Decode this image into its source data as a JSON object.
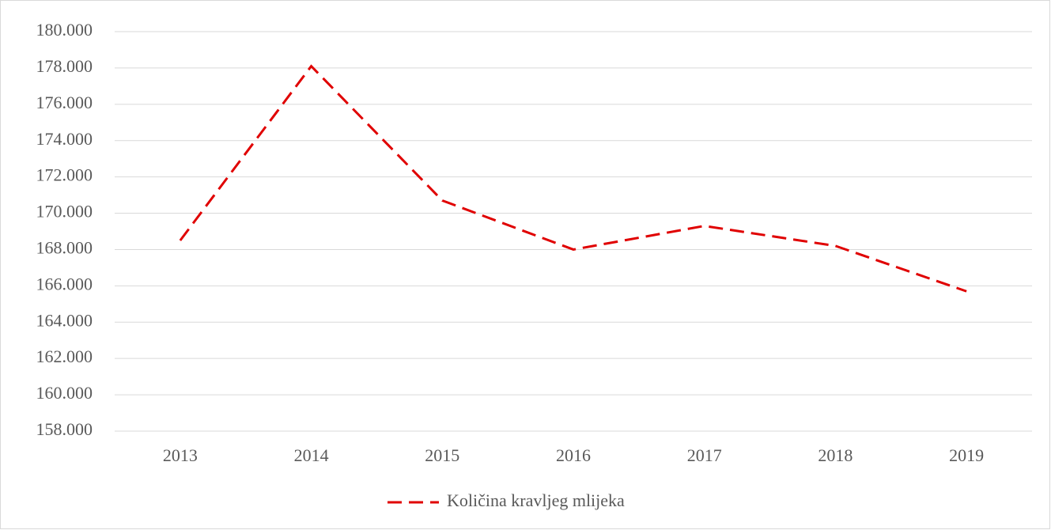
{
  "chart_data": {
    "type": "line",
    "categories": [
      "2013",
      "2014",
      "2015",
      "2016",
      "2017",
      "2018",
      "2019"
    ],
    "series": [
      {
        "name": "Količina kravljeg mlijeka",
        "color": "#e00000",
        "values": [
          168500,
          178100,
          170700,
          168000,
          169300,
          168200,
          165700
        ]
      }
    ],
    "ylim": [
      158000,
      180000
    ],
    "yticks": [
      {
        "value": 158000,
        "label": "158.000"
      },
      {
        "value": 160000,
        "label": "160.000"
      },
      {
        "value": 162000,
        "label": "162.000"
      },
      {
        "value": 164000,
        "label": "164.000"
      },
      {
        "value": 166000,
        "label": "166.000"
      },
      {
        "value": 168000,
        "label": "168.000"
      },
      {
        "value": 170000,
        "label": "170.000"
      },
      {
        "value": 172000,
        "label": "172.000"
      },
      {
        "value": 174000,
        "label": "174.000"
      },
      {
        "value": 176000,
        "label": "176.000"
      },
      {
        "value": 178000,
        "label": "178.000"
      },
      {
        "value": 180000,
        "label": "180.000"
      }
    ],
    "grid": true,
    "legend": "bottom",
    "line_style": "dashed"
  }
}
